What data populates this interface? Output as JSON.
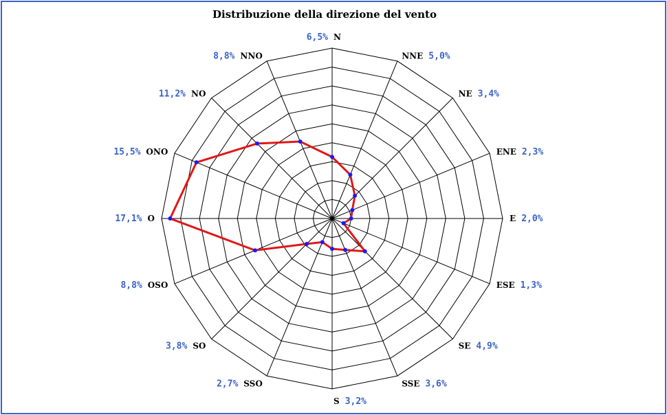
{
  "chart_data": {
    "type": "radar",
    "title": "Distribuzione della direzione del vento",
    "categories": [
      "N",
      "NNE",
      "NE",
      "ENE",
      "E",
      "ESE",
      "SE",
      "SSE",
      "S",
      "SSO",
      "SO",
      "OSO",
      "O",
      "ONO",
      "NO",
      "NNO"
    ],
    "value_labels": [
      "6,5%",
      "5,0%",
      "3,4%",
      "2,3%",
      "2,0%",
      "1,3%",
      "4,9%",
      "3,6%",
      "3,2%",
      "2,7%",
      "3,8%",
      "8,8%",
      "17,1%",
      "15,5%",
      "11,2%",
      "8,8%"
    ],
    "series": [
      {
        "values": [
          6.5,
          5.0,
          3.4,
          2.3,
          2.0,
          1.3,
          4.9,
          3.6,
          3.2,
          2.7,
          3.8,
          8.8,
          17.1,
          15.5,
          11.2,
          8.8
        ]
      }
    ],
    "rlim": [
      0,
      18
    ],
    "grid": true,
    "colors": {
      "series": "#e01818",
      "points": "#1a1aff",
      "labels": "#3a63c8",
      "frame": "#3a63c8"
    }
  }
}
